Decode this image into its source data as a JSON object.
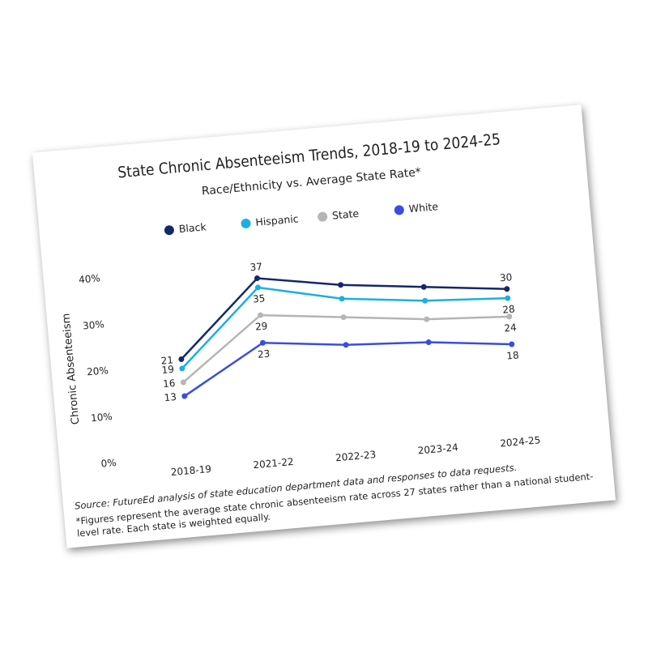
{
  "chart_data": {
    "type": "line",
    "title": "State Chronic Absenteeism Trends, 2018-19 to 2024-25",
    "subtitle": "Race/Ethnicity vs. Average State Rate*",
    "y_label": "Chronic Absenteeism",
    "categories": [
      "2018-19",
      "2021-22",
      "2022-23",
      "2023-24",
      "2024-25"
    ],
    "series": [
      {
        "name": "Black",
        "color": "#13286b",
        "values": [
          21,
          37,
          34,
          32,
          30
        ],
        "value_labels": [
          "21",
          "37",
          null,
          null,
          "30"
        ]
      },
      {
        "name": "Hispanic",
        "color": "#1ab0e0",
        "values": [
          19,
          35,
          31,
          29,
          28
        ],
        "value_labels": [
          "19",
          "35",
          null,
          null,
          "28"
        ]
      },
      {
        "name": "State",
        "color": "#b5b5b5",
        "values": [
          16,
          29,
          27,
          25,
          24
        ],
        "value_labels": [
          "16",
          "29",
          null,
          null,
          "24"
        ]
      },
      {
        "name": "White",
        "color": "#3a4de0",
        "values": [
          13,
          23,
          21,
          20,
          18
        ],
        "value_labels": [
          "13",
          "23",
          null,
          null,
          "18"
        ]
      }
    ],
    "ylim": [
      0,
      42
    ],
    "yticks": [
      {
        "value": 0,
        "label": "0%"
      },
      {
        "value": 10,
        "label": "10%"
      },
      {
        "value": 20,
        "label": "20%"
      },
      {
        "value": 30,
        "label": "30%"
      },
      {
        "value": 40,
        "label": "40%"
      }
    ],
    "grid": false,
    "legend": "top",
    "source": "Source: FutureEd analysis of state education department data and responses to data requests.",
    "footnote": "*Figures represent the average state chronic absenteeism rate across 27 states rather than a national student-level rate. Each state is weighted equally."
  }
}
